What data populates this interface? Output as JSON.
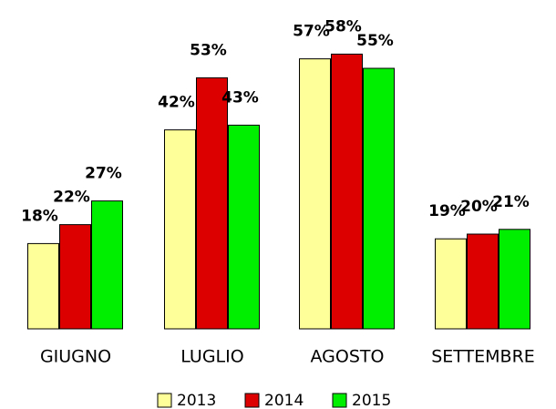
{
  "chart_data": {
    "type": "bar",
    "categories": [
      "GIUGNO",
      "LUGLIO",
      "AGOSTO",
      "SETTEMBRE"
    ],
    "series": [
      {
        "name": "2013",
        "color": "#ffff99",
        "values": [
          18,
          42,
          57,
          19
        ],
        "value_labels": [
          "18%",
          "42%",
          "57%",
          "19%"
        ]
      },
      {
        "name": "2014",
        "color": "#dd0000",
        "values": [
          22,
          53,
          58,
          20
        ],
        "value_labels": [
          "22%",
          "53%",
          "58%",
          "20%"
        ]
      },
      {
        "name": "2015",
        "color": "#00ee00",
        "values": [
          27,
          43,
          55,
          21
        ],
        "value_labels": [
          "27%",
          "43%",
          "55%",
          "21%"
        ]
      }
    ],
    "legend": "bottom"
  }
}
